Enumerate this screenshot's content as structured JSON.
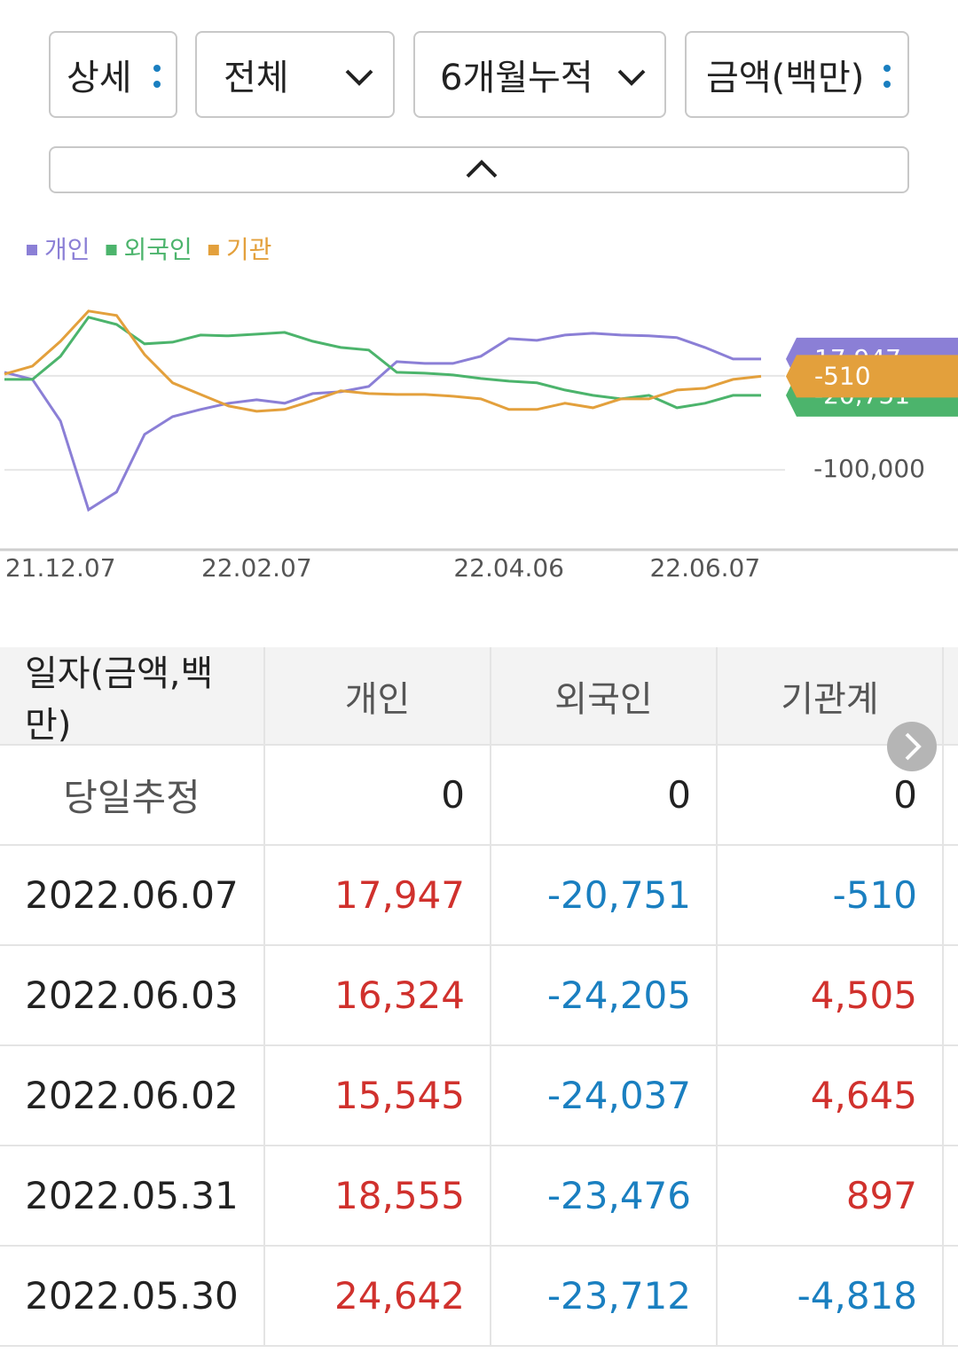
{
  "controls": [
    "상세",
    "전체",
    "6개월누적",
    "금액(백만)"
  ],
  "chart_data": {
    "type": "line",
    "legend": [
      "개인",
      "외국인",
      "기관"
    ],
    "categories": [
      null,
      null,
      "21.12.07",
      null,
      null,
      null,
      null,
      null,
      null,
      "22.02.07",
      null,
      null,
      null,
      null,
      null,
      null,
      null,
      null,
      "22.04.06",
      null,
      null,
      null,
      null,
      null,
      null,
      "22.06.07",
      null,
      null
    ],
    "series": [
      {
        "name": "개인",
        "color": "#8b7fd6",
        "end_label": "17,947",
        "values": [
          3800,
          -3800,
          -48100,
          -142500,
          -123600,
          -62300,
          -43400,
          -35800,
          -29200,
          -25500,
          -29200,
          -18900,
          -17000,
          -11300,
          15100,
          13200,
          13200,
          20800,
          39600,
          37700,
          43400,
          45300,
          43400,
          42500,
          40600,
          30200,
          17900,
          17947
        ]
      },
      {
        "name": "외국인",
        "color": "#4cb46c",
        "end_label": "-20,751",
        "values": [
          -3800,
          -3800,
          20800,
          62300,
          54700,
          34000,
          35800,
          43400,
          42500,
          44300,
          46200,
          36800,
          30200,
          27400,
          3800,
          2800,
          900,
          -2800,
          -5700,
          -7500,
          -15100,
          -20800,
          -24500,
          -20800,
          -34000,
          -29200,
          -20800,
          -20751
        ]
      },
      {
        "name": "기관",
        "color": "#e3a03c",
        "end_label": "-510",
        "values": [
          1900,
          10400,
          36800,
          68900,
          64200,
          22600,
          -7500,
          -19800,
          -32100,
          -37700,
          -35800,
          -26400,
          -16000,
          -18900,
          -19800,
          -19800,
          -21700,
          -24500,
          -35800,
          -35800,
          -29200,
          -34000,
          -24500,
          -24500,
          -15100,
          -13200,
          -3800,
          -510
        ]
      }
    ],
    "ylim": [
      -185000,
      98000
    ],
    "yticks": [
      {
        "value": -100000,
        "label": "-100,000"
      }
    ],
    "grid": true
  },
  "table": {
    "header": [
      "일자(금액,백만)",
      "개인",
      "외국인",
      "기관계"
    ],
    "rows": [
      [
        "당일추정",
        "0",
        "0",
        "0"
      ],
      [
        "2022.06.07",
        "17,947",
        "-20,751",
        "-510"
      ],
      [
        "2022.06.03",
        "16,324",
        "-24,205",
        "4,505"
      ],
      [
        "2022.06.02",
        "15,545",
        "-24,037",
        "4,645"
      ],
      [
        "2022.05.31",
        "18,555",
        "-23,476",
        "897"
      ],
      [
        "2022.05.30",
        "24,642",
        "-23,712",
        "-4,818"
      ]
    ]
  }
}
